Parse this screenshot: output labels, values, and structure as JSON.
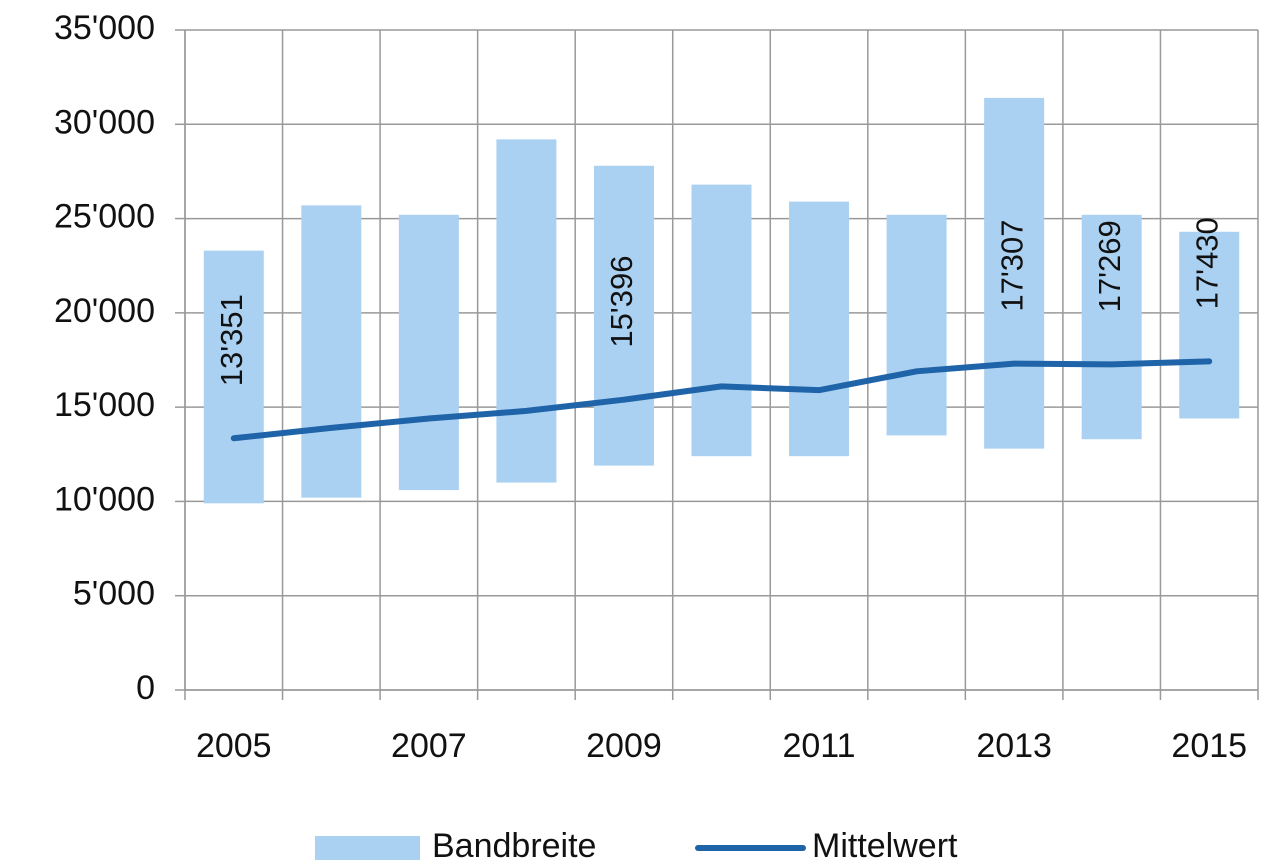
{
  "chart_data": {
    "type": "range-bar-line",
    "categories": [
      "2005",
      null,
      "2007",
      null,
      "2009",
      null,
      "2011",
      null,
      "2013",
      null,
      "2015"
    ],
    "series": [
      {
        "name": "Bandbreite",
        "color": "#abd1f2",
        "low": [
          9900,
          10200,
          10600,
          11000,
          11900,
          12400,
          12400,
          13500,
          12800,
          13300,
          14400
        ],
        "high": [
          23300,
          25700,
          25200,
          29200,
          27800,
          26800,
          25900,
          25200,
          31400,
          25200,
          24300
        ]
      },
      {
        "name": "Mittelwert",
        "color": "#1f64a8",
        "values": [
          13351,
          13900,
          14400,
          14800,
          15396,
          16100,
          15900,
          16900,
          17307,
          17269,
          17430
        ],
        "value_labels": [
          "13'351",
          null,
          null,
          null,
          "15'396",
          null,
          null,
          null,
          "17'307",
          "17'269",
          "17'430"
        ]
      }
    ],
    "ylim": [
      0,
      35000
    ],
    "yticks": [
      0,
      {
        "value": 5000,
        "label": "5'000"
      },
      {
        "value": 10000,
        "label": "10'000"
      },
      {
        "value": 15000,
        "label": "15'000"
      },
      {
        "value": 20000,
        "label": "20'000"
      },
      {
        "value": 25000,
        "label": "25'000"
      },
      {
        "value": 30000,
        "label": "30'000"
      },
      {
        "value": 35000,
        "label": "35'000"
      }
    ],
    "grid": true
  }
}
